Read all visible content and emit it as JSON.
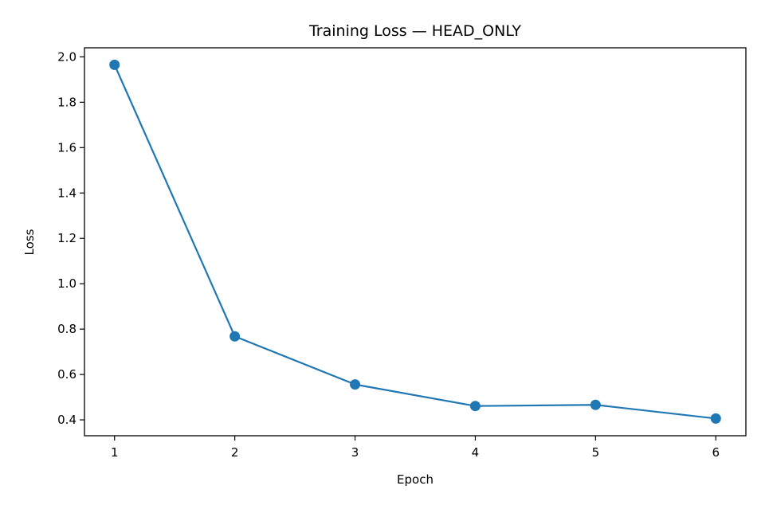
{
  "chart_data": {
    "type": "line",
    "title": "Training Loss — HEAD_ONLY",
    "xlabel": "Epoch",
    "ylabel": "Loss",
    "x": [
      1,
      2,
      3,
      4,
      5,
      6
    ],
    "xticks": [
      "1",
      "2",
      "3",
      "4",
      "5",
      "6"
    ],
    "yticks": [
      "0.4",
      "0.6",
      "0.8",
      "1.0",
      "1.2",
      "1.4",
      "1.6",
      "1.8",
      "2.0"
    ],
    "xlim": [
      0.75,
      6.25
    ],
    "ylim": [
      0.33,
      2.04
    ],
    "grid": false,
    "legend": "none",
    "series": [
      {
        "values": [
          1.965,
          0.768,
          0.556,
          0.461,
          0.466,
          0.406
        ],
        "color": "#1f77b4",
        "marker": "circle"
      }
    ]
  }
}
